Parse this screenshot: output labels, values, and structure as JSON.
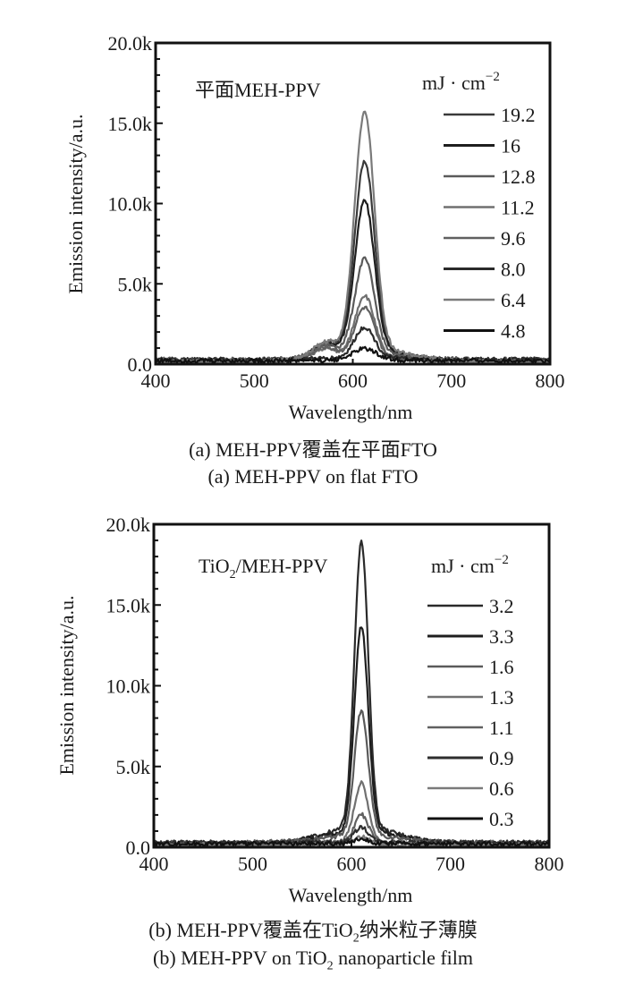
{
  "chart_data": [
    {
      "type": "line",
      "panel": "a",
      "annotation": "平面MEH-PPV",
      "xlabel": "Wavelength/nm",
      "ylabel": "Emission intensity/a.u.",
      "xlim": [
        400,
        800
      ],
      "ylim": [
        0,
        20000
      ],
      "xticks": [
        "400",
        "500",
        "600",
        "700",
        "800"
      ],
      "yticks": [
        "0.0",
        "5.0k",
        "10.0k",
        "15.0k",
        "20.0k"
      ],
      "grid": false,
      "legend_title": "mJ · cm",
      "legend_title_sup": "−2",
      "legend_position": "top-right",
      "peak_wavelength": 612,
      "series": [
        {
          "name": "19.2",
          "color": "#3a3a3a",
          "peak": 11800,
          "width": 10
        },
        {
          "name": "16",
          "color": "#1e1e1e",
          "peak": 9400,
          "width": 10
        },
        {
          "name": "12.8",
          "color": "#5a5a5a",
          "peak": 5900,
          "width": 10
        },
        {
          "name": "11.2",
          "color": "#707070",
          "peak": 3900,
          "width": 10
        },
        {
          "name": "9.6",
          "color": "#606060",
          "peak": 3100,
          "width": 10
        },
        {
          "name": "8.0",
          "color": "#2a2a2a",
          "peak": 1900,
          "width": 10
        },
        {
          "name": "6.4",
          "color": "#7a7a7a",
          "peak": 14700,
          "width": 10
        },
        {
          "name": "4.8",
          "color": "#111111",
          "peak": 700,
          "width": 12
        }
      ],
      "caption_cn": "(a) MEH-PPV覆盖在平面FTO",
      "caption_en": "(a) MEH-PPV on flat FTO"
    },
    {
      "type": "line",
      "panel": "b",
      "annotation_main": "TiO",
      "annotation_sub": "2",
      "annotation_rest": "/MEH-PPV",
      "xlabel": "Wavelength/nm",
      "ylabel": "Emission intensity/a.u.",
      "xlim": [
        400,
        800
      ],
      "ylim": [
        0,
        20000
      ],
      "xticks": [
        "400",
        "500",
        "600",
        "700",
        "800"
      ],
      "yticks": [
        "0.0",
        "5.0k",
        "10.0k",
        "15.0k",
        "20.0k"
      ],
      "grid": false,
      "legend_title": "mJ · cm",
      "legend_title_sup": "−2",
      "legend_position": "top-right",
      "peak_wavelength": 610,
      "series": [
        {
          "name": "3.2",
          "color": "#2a2a2a",
          "peak": 17700,
          "width": 7
        },
        {
          "name": "3.3",
          "color": "#1e1e1e",
          "peak": 12700,
          "width": 7
        },
        {
          "name": "1.6",
          "color": "#5a5a5a",
          "peak": 7700,
          "width": 7
        },
        {
          "name": "1.3",
          "color": "#707070",
          "peak": 3600,
          "width": 7
        },
        {
          "name": "1.1",
          "color": "#606060",
          "peak": 1700,
          "width": 7
        },
        {
          "name": "0.9",
          "color": "#2e2e2e",
          "peak": 900,
          "width": 7
        },
        {
          "name": "0.6",
          "color": "#7a7a7a",
          "peak": 500,
          "width": 7
        },
        {
          "name": "0.3",
          "color": "#111111",
          "peak": 300,
          "width": 7
        }
      ],
      "caption_cn_pre": "(b) MEH-PPV覆盖在TiO",
      "caption_cn_sub": "2",
      "caption_cn_post": "纳米粒子薄膜",
      "caption_en_pre": "(b) MEH-PPV on TiO",
      "caption_en_sub": "2",
      "caption_en_post": " nanoparticle film"
    }
  ]
}
